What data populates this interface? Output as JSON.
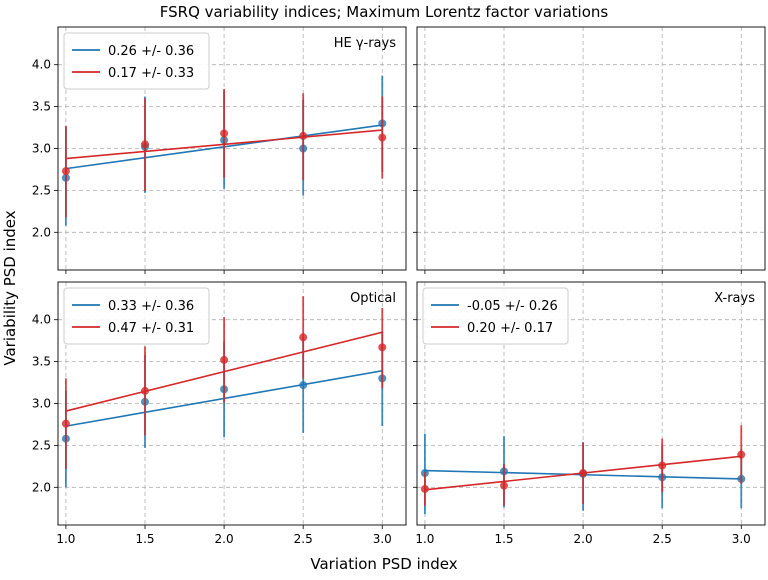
{
  "chart_data": {
    "type": "scatter",
    "title": "FSRQ variability indices; Maximum Lorentz factor variations",
    "xlabel": "Variation PSD index",
    "ylabel": "Variability PSD index",
    "xlim": [
      0.95,
      3.15
    ],
    "xticks": [
      1.0,
      1.5,
      2.0,
      2.5,
      3.0
    ],
    "xtick_labels": [
      "1.0",
      "1.5",
      "2.0",
      "2.5",
      "3.0"
    ],
    "ylim": [
      1.55,
      4.45
    ],
    "yticks": [
      2.0,
      2.5,
      3.0,
      3.5,
      4.0
    ],
    "ytick_labels": [
      "2.0",
      "2.5",
      "3.0",
      "3.5",
      "4.0"
    ],
    "colors": {
      "blue": "#1f77b4",
      "red": "#d62728"
    },
    "panels": [
      {
        "label": "HE γ-rays",
        "series": [
          {
            "name": "0.26 +/- 0.36",
            "color": "#1f77b4",
            "x": [
              1.0,
              1.5,
              2.0,
              2.5,
              3.0
            ],
            "y": [
              2.65,
              3.02,
              3.1,
              3.0,
              3.3
            ],
            "err_low": [
              2.08,
              2.47,
              2.52,
              2.44,
              2.72
            ],
            "err_high": [
              3.25,
              3.62,
              3.69,
              3.58,
              3.87
            ],
            "fit": {
              "slope": 0.26,
              "intercept": 2.5
            }
          },
          {
            "name": "0.17 +/- 0.33",
            "color": "#d62728",
            "x": [
              1.0,
              1.5,
              2.0,
              2.5,
              3.0
            ],
            "y": [
              2.73,
              3.05,
              3.18,
              3.15,
              3.13
            ],
            "err_low": [
              2.18,
              2.49,
              2.65,
              2.62,
              2.64
            ],
            "err_high": [
              3.27,
              3.6,
              3.71,
              3.66,
              3.62
            ],
            "fit": {
              "slope": 0.17,
              "intercept": 2.71
            }
          }
        ]
      },
      {
        "label": "",
        "series": []
      },
      {
        "label": "Optical",
        "series": [
          {
            "name": "0.33 +/- 0.36",
            "color": "#1f77b4",
            "x": [
              1.0,
              1.5,
              2.0,
              2.5,
              3.0
            ],
            "y": [
              2.58,
              3.02,
              3.17,
              3.22,
              3.3
            ],
            "err_low": [
              2.0,
              2.47,
              2.6,
              2.65,
              2.73
            ],
            "err_high": [
              3.15,
              3.58,
              3.74,
              3.79,
              3.86
            ],
            "fit": {
              "slope": 0.33,
              "intercept": 2.4
            }
          },
          {
            "name": "0.47 +/- 0.31",
            "color": "#d62728",
            "x": [
              1.0,
              1.5,
              2.0,
              2.5,
              3.0
            ],
            "y": [
              2.76,
              3.15,
              3.52,
              3.79,
              3.67
            ],
            "err_low": [
              2.22,
              2.62,
              3.01,
              3.3,
              3.18
            ],
            "err_high": [
              3.3,
              3.68,
              4.03,
              4.28,
              4.14
            ],
            "fit": {
              "slope": 0.47,
              "intercept": 2.44
            }
          }
        ]
      },
      {
        "label": "X-rays",
        "series": [
          {
            "name": "-0.05 +/- 0.26",
            "color": "#1f77b4",
            "x": [
              1.0,
              1.5,
              2.0,
              2.5,
              3.0
            ],
            "y": [
              2.17,
              2.19,
              2.16,
              2.12,
              2.1
            ],
            "err_low": [
              1.68,
              1.76,
              1.72,
              1.75,
              1.75
            ],
            "err_high": [
              2.64,
              2.61,
              2.54,
              2.5,
              2.46
            ],
            "fit": {
              "slope": -0.05,
              "intercept": 2.25
            }
          },
          {
            "name": "0.20 +/- 0.17",
            "color": "#d62728",
            "x": [
              1.0,
              1.5,
              2.0,
              2.5,
              3.0
            ],
            "y": [
              1.98,
              2.02,
              2.17,
              2.26,
              2.39
            ],
            "err_low": [
              1.78,
              1.78,
              1.8,
              1.94,
              2.04
            ],
            "err_high": [
              2.18,
              2.28,
              2.53,
              2.58,
              2.74
            ],
            "fit": {
              "slope": 0.2,
              "intercept": 1.77
            }
          }
        ]
      }
    ]
  }
}
